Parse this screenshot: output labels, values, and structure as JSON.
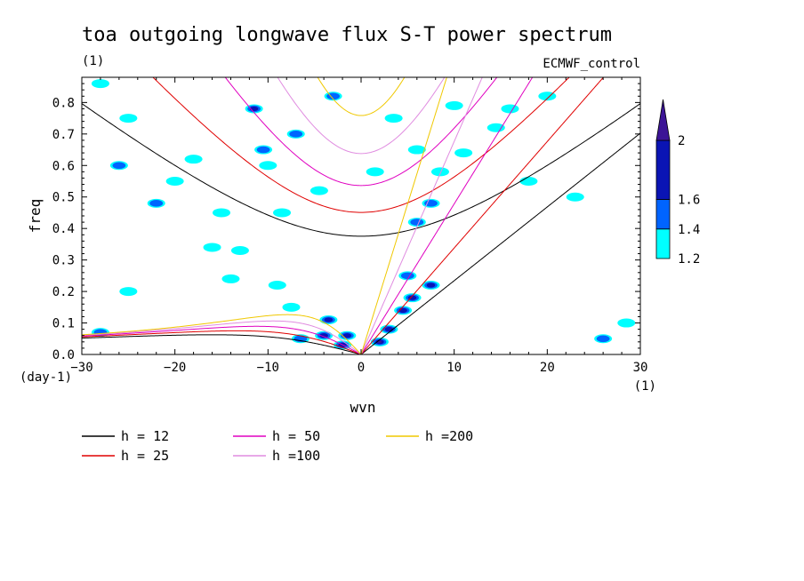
{
  "chart_data": {
    "type": "heatmap",
    "title": "toa outgoing longwave flux S-T power spectrum",
    "subtitle": "(1)",
    "source_label": "ECMWF_control",
    "xlabel": "wvn",
    "ylabel": "freq",
    "x_unit": "(1)",
    "y_unit": "(day-1)",
    "xlim": [
      -30,
      30
    ],
    "ylim": [
      0,
      0.88
    ],
    "x_ticks": [
      -30,
      -20,
      -10,
      0,
      10,
      20,
      30
    ],
    "x_tick_labels": [
      "−30",
      "−20",
      "−10",
      "0",
      "10",
      "20",
      "30"
    ],
    "y_ticks": [
      0,
      0.1,
      0.2,
      0.3,
      0.4,
      0.5,
      0.6,
      0.7,
      0.8
    ],
    "y_tick_labels": [
      "0.0",
      "0.1",
      "0.2",
      "0.3",
      "0.4",
      "0.5",
      "0.6",
      "0.7",
      "0.8"
    ],
    "colorbar": {
      "levels": [
        1.2,
        1.4,
        1.6,
        2
      ],
      "level_labels": [
        "1.2",
        "1.4",
        "1.6",
        "2"
      ],
      "colors": [
        "#00ffff",
        "#0064ff",
        "#0a14b4",
        "#3c1496"
      ]
    },
    "dispersion_curves": [
      {
        "label": "h = 12",
        "h": 12,
        "color": "#000000"
      },
      {
        "label": "h = 25",
        "h": 25,
        "color": "#e00000"
      },
      {
        "label": "h = 50",
        "h": 50,
        "color": "#e000c0"
      },
      {
        "label": "h =100",
        "h": 100,
        "color": "#e08ce0"
      },
      {
        "label": "h =200",
        "h": 200,
        "color": "#f0c800"
      }
    ],
    "power_blobs": [
      {
        "x": 2.0,
        "y": 0.04,
        "v": 2.0
      },
      {
        "x": 3.0,
        "y": 0.08,
        "v": 1.8
      },
      {
        "x": 4.5,
        "y": 0.14,
        "v": 1.9
      },
      {
        "x": 5.5,
        "y": 0.18,
        "v": 1.8
      },
      {
        "x": 7.5,
        "y": 0.22,
        "v": 1.6
      },
      {
        "x": 5.0,
        "y": 0.25,
        "v": 1.5
      },
      {
        "x": 6.0,
        "y": 0.42,
        "v": 1.5
      },
      {
        "x": 7.5,
        "y": 0.48,
        "v": 1.4
      },
      {
        "x": 8.5,
        "y": 0.58,
        "v": 1.3
      },
      {
        "x": 11.0,
        "y": 0.64,
        "v": 1.3
      },
      {
        "x": 14.5,
        "y": 0.72,
        "v": 1.3
      },
      {
        "x": 10.0,
        "y": 0.79,
        "v": 1.3
      },
      {
        "x": 6.0,
        "y": 0.65,
        "v": 1.3
      },
      {
        "x": -4.0,
        "y": 0.06,
        "v": 1.9
      },
      {
        "x": -3.5,
        "y": 0.11,
        "v": 1.7
      },
      {
        "x": -1.5,
        "y": 0.06,
        "v": 1.8
      },
      {
        "x": -6.5,
        "y": 0.05,
        "v": 1.5
      },
      {
        "x": -2.0,
        "y": 0.03,
        "v": 1.6
      },
      {
        "x": -9.0,
        "y": 0.22,
        "v": 1.3
      },
      {
        "x": -14.0,
        "y": 0.24,
        "v": 1.3
      },
      {
        "x": -16.0,
        "y": 0.34,
        "v": 1.3
      },
      {
        "x": -13.0,
        "y": 0.33,
        "v": 1.3
      },
      {
        "x": -11.5,
        "y": 0.78,
        "v": 1.6
      },
      {
        "x": -10.5,
        "y": 0.65,
        "v": 1.4
      },
      {
        "x": -10.0,
        "y": 0.6,
        "v": 1.3
      },
      {
        "x": -7.0,
        "y": 0.7,
        "v": 1.4
      },
      {
        "x": -4.5,
        "y": 0.52,
        "v": 1.3
      },
      {
        "x": -3.0,
        "y": 0.82,
        "v": 1.4
      },
      {
        "x": -20.0,
        "y": 0.55,
        "v": 1.3
      },
      {
        "x": -22.0,
        "y": 0.48,
        "v": 1.4
      },
      {
        "x": -25.0,
        "y": 0.75,
        "v": 1.3
      },
      {
        "x": -26.0,
        "y": 0.6,
        "v": 1.5
      },
      {
        "x": -28.0,
        "y": 0.86,
        "v": 1.3
      },
      {
        "x": -18.0,
        "y": 0.62,
        "v": 1.3
      },
      {
        "x": -28.0,
        "y": 0.07,
        "v": 1.4
      },
      {
        "x": -25.0,
        "y": 0.2,
        "v": 1.3
      },
      {
        "x": -7.5,
        "y": 0.15,
        "v": 1.3
      },
      {
        "x": 16.0,
        "y": 0.78,
        "v": 1.3
      },
      {
        "x": 20.0,
        "y": 0.82,
        "v": 1.3
      },
      {
        "x": 26.0,
        "y": 0.05,
        "v": 1.4
      },
      {
        "x": 28.5,
        "y": 0.1,
        "v": 1.3
      },
      {
        "x": 23.0,
        "y": 0.5,
        "v": 1.3
      },
      {
        "x": 18.0,
        "y": 0.55,
        "v": 1.3
      },
      {
        "x": 3.5,
        "y": 0.75,
        "v": 1.3
      },
      {
        "x": -15.0,
        "y": 0.45,
        "v": 1.3
      },
      {
        "x": -8.5,
        "y": 0.45,
        "v": 1.3
      },
      {
        "x": 1.5,
        "y": 0.58,
        "v": 1.3
      }
    ]
  }
}
